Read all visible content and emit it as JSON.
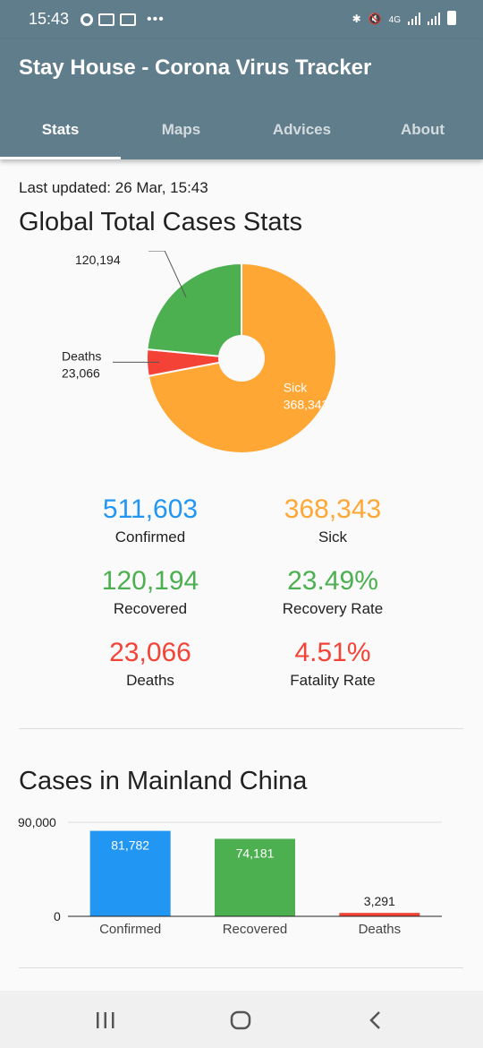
{
  "status_bar": {
    "time": "15:43",
    "network": "4G"
  },
  "app_bar": {
    "title": "Stay House - Corona Virus Tracker",
    "tabs": [
      {
        "label": "Stats",
        "active": true
      },
      {
        "label": "Maps",
        "active": false
      },
      {
        "label": "Advices",
        "active": false
      },
      {
        "label": "About",
        "active": false
      }
    ]
  },
  "content": {
    "last_updated": "Last updated: 26 Mar, 15:43",
    "global_heading": "Global Total Cases Stats",
    "china_heading": "Cases in Mainland China"
  },
  "colors": {
    "primary": "#607d8b",
    "confirmed": "#2196f3",
    "sick": "#ffa735",
    "recovered": "#4caf50",
    "deaths": "#f44336"
  },
  "stats": {
    "confirmed": {
      "value": "511,603",
      "label": "Confirmed"
    },
    "sick": {
      "value": "368,343",
      "label": "Sick"
    },
    "recovered": {
      "value": "120,194",
      "label": "Recovered"
    },
    "recovery_rate": {
      "value": "23.49%",
      "label": "Recovery Rate"
    },
    "deaths": {
      "value": "23,066",
      "label": "Deaths"
    },
    "fatality_rate": {
      "value": "4.51%",
      "label": "Fatality Rate"
    }
  },
  "chart_data": [
    {
      "type": "pie",
      "title": "Global Total Cases Stats",
      "donut": true,
      "slices": [
        {
          "label": "Sick",
          "value": 368343,
          "display": "368,343",
          "color": "#ffa735"
        },
        {
          "label": "Deaths",
          "value": 23066,
          "display": "23,066",
          "color": "#f44336"
        },
        {
          "label": "Recovered",
          "value": 120194,
          "display": "120,194",
          "color": "#4caf50"
        }
      ]
    },
    {
      "type": "bar",
      "title": "Cases in Mainland China",
      "categories": [
        "Confirmed",
        "Recovered",
        "Deaths"
      ],
      "values": [
        81782,
        74181,
        3291
      ],
      "value_labels": [
        "81,782",
        "74,181",
        "3,291"
      ],
      "colors": [
        "#2196f3",
        "#4caf50",
        "#f44336"
      ],
      "ylim": [
        0,
        90000
      ],
      "y_ticks": [
        "0",
        "90,000"
      ],
      "grid": true
    }
  ]
}
